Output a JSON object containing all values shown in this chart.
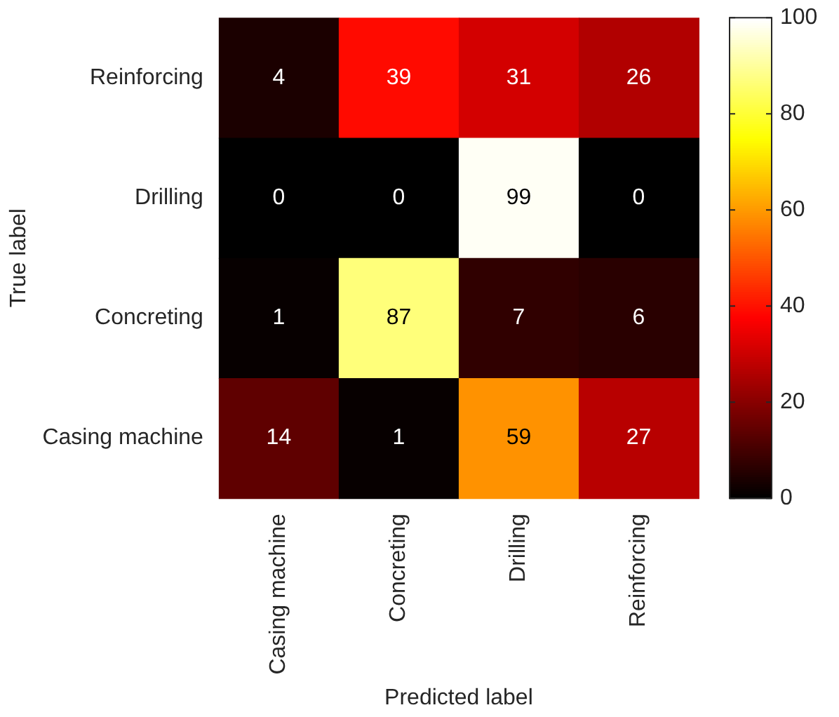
{
  "chart_data": {
    "type": "heatmap",
    "xlabel": "Predicted label",
    "ylabel": "True label",
    "categories": [
      "Casing machine",
      "Concreting",
      "Drilling",
      "Reinforcing"
    ],
    "y_categories": [
      "Reinforcing",
      "Drilling",
      "Concreting",
      "Casing machine"
    ],
    "cells": [
      [
        4,
        39,
        31,
        26
      ],
      [
        0,
        0,
        99,
        0
      ],
      [
        1,
        87,
        7,
        6
      ],
      [
        14,
        1,
        59,
        27
      ]
    ],
    "clim": [
      0,
      100
    ],
    "cticks": [
      0,
      20,
      40,
      60,
      80,
      100
    ],
    "data_labels": true
  }
}
